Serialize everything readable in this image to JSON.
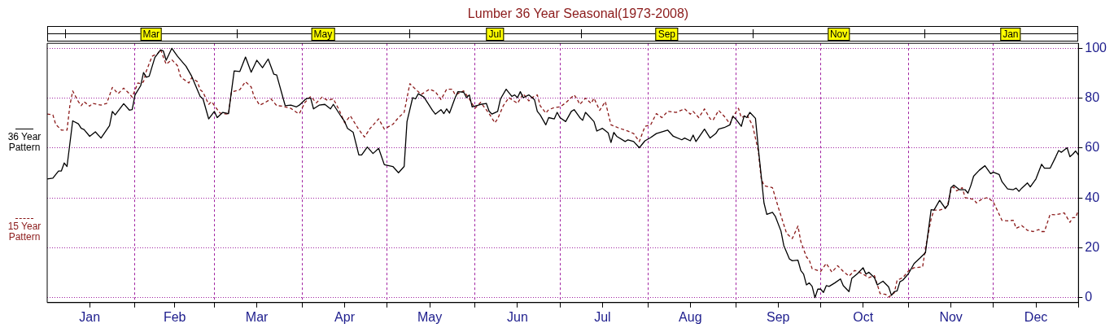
{
  "chart_data": {
    "type": "line",
    "title": "Lumber 36 Year Seasonal(1973-2008)",
    "xlim": [
      "--01-01",
      "--12-31"
    ],
    "xticks": [
      {
        "value": "--01-16",
        "label": "Jan"
      },
      {
        "value": "--02-01",
        "label": null
      },
      {
        "value": "--02-15",
        "label": "Feb"
      },
      {
        "value": "--03-01",
        "label": null
      },
      {
        "value": "--03-16",
        "label": "Mar"
      },
      {
        "value": "--04-01",
        "label": null
      },
      {
        "value": "--04-16",
        "label": "Apr"
      },
      {
        "value": "--05-01",
        "label": null
      },
      {
        "value": "--05-16",
        "label": "May"
      },
      {
        "value": "--06-01",
        "label": null
      },
      {
        "value": "--06-16",
        "label": "Jun"
      },
      {
        "value": "--07-01",
        "label": null
      },
      {
        "value": "--07-16",
        "label": "Jul"
      },
      {
        "value": "--08-01",
        "label": null
      },
      {
        "value": "--08-16",
        "label": "Aug"
      },
      {
        "value": "--09-01",
        "label": null
      },
      {
        "value": "--09-16",
        "label": "Sep"
      },
      {
        "value": "--10-01",
        "label": null
      },
      {
        "value": "--10-16",
        "label": "Oct"
      },
      {
        "value": "--11-01",
        "label": null
      },
      {
        "value": "--11-16",
        "label": "Nov"
      },
      {
        "value": "--12-01",
        "label": null
      },
      {
        "value": "--12-16",
        "label": "Dec"
      },
      {
        "value": "--12-31",
        "label": null
      }
    ],
    "annotations": [
      "Mar",
      "May",
      "Jul",
      "Sep",
      "Nov",
      "Jan"
    ],
    "ylim": [
      -2,
      102
    ],
    "yticks": [
      0,
      20,
      40,
      60,
      80,
      100
    ],
    "grid": true,
    "legend": "left",
    "series": [
      {
        "name": "36 Year Pattern",
        "color": "#000000",
        "line_style": "solid",
        "x": [
          "--01-01",
          "--01-03",
          "--01-05",
          "--01-06",
          "--01-07",
          "--01-08",
          "--01-10",
          "--01-12",
          "--01-13",
          "--01-14",
          "--01-16",
          "--01-18",
          "--01-20",
          "--01-23",
          "--01-24",
          "--01-25",
          "--01-28",
          "--01-30",
          "--01-31",
          "--02-01",
          "--02-03",
          "--02-04",
          "--02-05",
          "--02-06",
          "--02-08",
          "--02-10",
          "--02-11",
          "--02-12",
          "--02-14",
          "--02-16",
          "--02-18",
          "--02-19",
          "--02-21",
          "--02-24",
          "--02-25",
          "--02-27",
          "--03-01",
          "--03-02",
          "--03-04",
          "--03-06",
          "--03-08",
          "--03-10",
          "--03-12",
          "--03-14",
          "--03-16",
          "--03-18",
          "--03-20",
          "--03-22",
          "--03-23",
          "--03-26",
          "--03-28",
          "--03-30",
          "--03-31",
          "--04-02",
          "--04-03",
          "--04-04",
          "--04-05",
          "--04-07",
          "--04-09",
          "--04-11",
          "--04-12",
          "--04-15",
          "--04-16",
          "--04-17",
          "--04-19",
          "--04-21",
          "--04-22",
          "--04-24",
          "--04-26",
          "--04-28",
          "--04-30",
          "--05-03",
          "--05-05",
          "--05-07",
          "--05-08",
          "--05-10",
          "--05-11",
          "--05-12",
          "--05-14",
          "--05-17",
          "--05-18",
          "--05-20",
          "--05-21",
          "--05-22",
          "--05-23",
          "--05-25",
          "--05-26",
          "--05-28",
          "--05-29",
          "--05-30",
          "--05-31",
          "--06-03",
          "--06-05",
          "--06-06",
          "--06-07",
          "--06-09",
          "--06-10",
          "--06-12",
          "--06-14",
          "--06-15",
          "--06-16",
          "--06-17",
          "--06-18",
          "--06-20",
          "--06-22",
          "--06-23",
          "--06-24",
          "--06-26",
          "--06-27",
          "--06-29",
          "--06-30",
          "--07-01",
          "--07-03",
          "--07-05",
          "--07-06",
          "--07-08",
          "--07-09",
          "--07-10",
          "--07-13",
          "--07-14",
          "--07-16",
          "--07-18",
          "--07-19",
          "--07-20",
          "--07-21",
          "--07-24",
          "--07-25",
          "--07-27",
          "--07-29",
          "--07-30",
          "--07-31",
          "--08-02",
          "--08-04",
          "--08-08",
          "--08-10",
          "--08-13",
          "--08-14",
          "--08-16",
          "--08-17",
          "--08-18",
          "--08-21",
          "--08-23",
          "--08-25",
          "--08-26",
          "--08-28",
          "--08-30",
          "--08-31",
          "--09-01",
          "--09-03",
          "--09-04",
          "--09-05",
          "--09-06",
          "--09-08",
          "--09-09",
          "--09-10",
          "--09-11",
          "--09-12",
          "--09-14",
          "--09-15",
          "--09-17",
          "--09-18",
          "--09-20",
          "--09-21",
          "--09-23",
          "--09-24",
          "--09-25",
          "--09-26",
          "--09-27",
          "--09-28",
          "--09-29",
          "--09-30",
          "--10-01",
          "--10-02",
          "--10-03",
          "--10-04",
          "--10-06",
          "--10-08",
          "--10-09",
          "--10-11",
          "--10-12",
          "--10-14",
          "--10-16",
          "--10-17",
          "--10-18",
          "--10-20",
          "--10-21",
          "--10-23",
          "--10-25",
          "--10-26",
          "--10-27",
          "--10-28",
          "--10-29",
          "--10-30",
          "--11-01",
          "--11-03",
          "--11-05",
          "--11-07",
          "--11-09",
          "--11-10",
          "--11-12",
          "--11-14",
          "--11-15",
          "--11-16",
          "--11-17",
          "--11-19",
          "--11-21",
          "--11-22",
          "--11-23",
          "--11-24",
          "--11-26",
          "--11-28",
          "--11-30",
          "--12-01",
          "--12-03",
          "--12-04",
          "--12-06",
          "--12-08",
          "--12-09",
          "--12-10",
          "--12-11",
          "--12-13",
          "--12-14",
          "--12-16",
          "--12-18",
          "--12-19",
          "--12-21",
          "--12-23",
          "--12-24",
          "--12-25",
          "--12-27",
          "--12-28",
          "--12-29",
          "--12-30",
          "--12-31"
        ],
        "values": [
          47.6,
          47.9,
          50.8,
          50.8,
          54,
          52.6,
          70.9,
          69.7,
          67.9,
          67.4,
          64.7,
          66.5,
          64,
          69,
          74.7,
          73.3,
          77.8,
          75.2,
          75.4,
          81.3,
          85,
          90.3,
          88.4,
          88.8,
          96.3,
          99.3,
          98.9,
          95.2,
          100,
          96.8,
          94.1,
          92.8,
          88.8,
          80.7,
          79.7,
          71.7,
          74.7,
          72.2,
          74.3,
          73.8,
          90.9,
          90.7,
          96.5,
          90.4,
          95.2,
          92.2,
          95.7,
          89.6,
          89.3,
          77,
          77.2,
          76.5,
          77.2,
          79.4,
          80,
          80,
          75.7,
          77.2,
          77.5,
          75.7,
          77.5,
          72.2,
          70.6,
          67.9,
          66.3,
          57.2,
          57.2,
          60.4,
          57.8,
          59.9,
          53.3,
          52.6,
          50.1,
          52.6,
          70.6,
          80.2,
          79.7,
          81.8,
          80.4,
          75.1,
          73.6,
          75.4,
          73.8,
          75.7,
          74,
          80.2,
          82.6,
          82.4,
          80.2,
          81.3,
          76.5,
          77.5,
          77.9,
          74.7,
          73.6,
          74.7,
          79.7,
          83.6,
          80.7,
          81.3,
          80.2,
          82.6,
          80.2,
          81.3,
          79.4,
          74.7,
          73.3,
          69.3,
          72.2,
          71.7,
          74.3,
          72.2,
          70.6,
          74.7,
          75.4,
          72.2,
          71.1,
          74.3,
          70.6,
          66.8,
          67.9,
          66.1,
          62.2,
          66.3,
          64.7,
          62.6,
          63.3,
          62.6,
          60.1,
          61.5,
          62.9,
          64.2,
          65.8,
          67.2,
          64.7,
          63.3,
          64,
          62.9,
          65.2,
          62.6,
          67.6,
          64,
          65.8,
          67.6,
          68.2,
          69.3,
          72.7,
          71.7,
          68.7,
          72.9,
          72.2,
          74.3,
          71.9,
          59.9,
          49.2,
          38,
          33.4,
          34.2,
          32.6,
          26.7,
          20.9,
          15.5,
          14.8,
          15,
          10.9,
          9.4,
          5.1,
          5.9,
          4.5,
          0,
          3.4,
          3.4,
          2.1,
          4.8,
          4.5,
          5.9,
          7.5,
          4.8,
          2.4,
          7.7,
          9.6,
          12,
          9.4,
          10.2,
          8,
          5.1,
          6.6,
          4.3,
          0.9,
          2.4,
          2.7,
          6.4,
          7,
          9.6,
          13.7,
          15.8,
          18,
          35.3,
          35.1,
          39,
          35.8,
          37.2,
          44.1,
          45.1,
          43.3,
          43.3,
          41.9,
          44.9,
          48.7,
          51.1,
          52.9,
          49.7,
          50.3,
          49.4,
          46.5,
          43.6,
          43.3,
          43.9,
          42.6,
          43.9,
          46,
          44.4,
          47.6,
          53.5,
          51.9,
          51.9,
          56.5,
          59,
          58.3,
          60.1,
          56.5,
          57.5,
          58.8,
          57.2
        ]
      },
      {
        "name": "15 Year Pattern",
        "color": "#8b1a1a",
        "line_style": "dashed",
        "x": [
          "--01-01",
          "--01-03",
          "--01-04",
          "--01-06",
          "--01-08",
          "--01-09",
          "--01-10",
          "--01-12",
          "--01-13",
          "--01-14",
          "--01-16",
          "--01-17",
          "--01-20",
          "--01-22",
          "--01-24",
          "--01-26",
          "--01-28",
          "--01-30",
          "--01-31",
          "--02-02",
          "--02-03",
          "--02-04",
          "--02-05",
          "--02-07",
          "--02-09",
          "--02-10",
          "--02-11",
          "--02-12",
          "--02-14",
          "--02-16",
          "--02-17",
          "--02-18",
          "--02-20",
          "--02-21",
          "--02-23",
          "--02-24",
          "--02-25",
          "--02-27",
          "--02-28",
          "--03-03",
          "--03-04",
          "--03-06",
          "--03-07",
          "--03-10",
          "--03-12",
          "--03-14",
          "--03-15",
          "--03-17",
          "--03-19",
          "--03-21",
          "--03-23",
          "--03-25",
          "--03-28",
          "--03-30",
          "--03-31",
          "--04-02",
          "--04-04",
          "--04-06",
          "--04-08",
          "--04-10",
          "--04-12",
          "--04-14",
          "--04-16",
          "--04-18",
          "--04-21",
          "--04-23",
          "--04-25",
          "--04-28",
          "--04-30",
          "--05-03",
          "--05-05",
          "--05-07",
          "--05-09",
          "--05-11",
          "--05-13",
          "--05-16",
          "--05-18",
          "--05-20",
          "--05-22",
          "--05-24",
          "--05-25",
          "--05-28",
          "--05-30",
          "--06-01",
          "--06-03",
          "--06-06",
          "--06-08",
          "--06-09",
          "--06-11",
          "--06-13",
          "--06-14",
          "--06-16",
          "--06-18",
          "--06-20",
          "--06-21",
          "--06-23",
          "--06-24",
          "--06-26",
          "--06-27",
          "--06-29",
          "--07-01",
          "--07-03",
          "--07-06",
          "--07-07",
          "--07-08",
          "--07-10",
          "--07-12",
          "--07-13",
          "--07-15",
          "--07-17",
          "--07-19",
          "--07-22",
          "--07-25",
          "--07-27",
          "--07-29",
          "--07-31",
          "--08-02",
          "--08-04",
          "--08-06",
          "--08-08",
          "--08-11",
          "--08-14",
          "--08-16",
          "--08-17",
          "--08-19",
          "--08-21",
          "--08-23",
          "--08-24",
          "--08-26",
          "--08-28",
          "--08-30",
          "--08-31",
          "--09-02",
          "--09-03",
          "--09-05",
          "--09-07",
          "--09-09",
          "--09-10",
          "--09-11",
          "--09-14",
          "--09-16",
          "--09-19",
          "--09-21",
          "--09-23",
          "--09-24",
          "--09-26",
          "--09-27",
          "--09-28",
          "--10-01",
          "--10-03",
          "--10-05",
          "--10-07",
          "--10-09",
          "--10-11",
          "--10-13",
          "--10-14",
          "--10-16",
          "--10-18",
          "--10-20",
          "--10-22",
          "--10-24",
          "--10-25",
          "--10-27",
          "--10-28",
          "--10-30",
          "--11-01",
          "--11-03",
          "--11-06",
          "--11-07",
          "--11-09",
          "--11-10",
          "--11-12",
          "--11-14",
          "--11-15",
          "--11-16",
          "--11-17",
          "--11-18",
          "--11-20",
          "--11-21",
          "--11-24",
          "--11-25",
          "--11-27",
          "--11-29",
          "--12-01",
          "--12-04",
          "--12-06",
          "--12-08",
          "--12-09",
          "--12-11",
          "--12-13",
          "--12-15",
          "--12-17",
          "--12-18",
          "--12-19",
          "--12-21",
          "--12-23",
          "--12-26",
          "--12-28",
          "--12-29",
          "--12-30",
          "--12-31"
        ],
        "values": [
          73.6,
          73.3,
          69.5,
          67.2,
          67.2,
          77,
          82.9,
          78.6,
          77,
          78.6,
          76.8,
          77.9,
          77.2,
          77.9,
          84.3,
          81.8,
          84,
          81.8,
          80.4,
          86.1,
          85.8,
          86.6,
          90.9,
          96.8,
          97.9,
          99.5,
          96.5,
          93.6,
          95.4,
          93,
          88.8,
          87.7,
          86.1,
          88.2,
          86.6,
          83.4,
          82.4,
          77.5,
          78.6,
          74,
          73.8,
          73.6,
          82.4,
          83.4,
          86.6,
          84.5,
          80.7,
          77.2,
          78.3,
          79.7,
          77,
          76.8,
          75.9,
          74.3,
          73.8,
          78.3,
          80.7,
          78.1,
          80.4,
          79.1,
          79.7,
          75.4,
          70.1,
          72.9,
          67.4,
          64.4,
          67.9,
          71.7,
          67.6,
          69.5,
          72.2,
          74.3,
          85.8,
          83.6,
          81.5,
          83.6,
          82.6,
          79.4,
          83.6,
          83.6,
          81.3,
          82.9,
          79.7,
          75.9,
          78.3,
          73.8,
          70.1,
          71.7,
          77,
          80.2,
          79.4,
          77.9,
          81.8,
          78.9,
          80.2,
          81.3,
          77,
          74,
          75.4,
          76.2,
          76.5,
          78.1,
          81.3,
          79.7,
          77.5,
          80,
          77.9,
          80,
          75.1,
          78.6,
          69.3,
          67.9,
          66.8,
          65.8,
          62.6,
          68.7,
          69.3,
          73.8,
          72.2,
          74.7,
          74.3,
          75.7,
          73.6,
          74.7,
          72.2,
          75.7,
          71.7,
          71.1,
          75.1,
          72.7,
          69.7,
          72.5,
          75.9,
          72.2,
          73.3,
          69,
          58.8,
          47.9,
          44.9,
          44.1,
          36.4,
          25.7,
          23.7,
          28.7,
          22.5,
          16.3,
          15,
          11.6,
          10.5,
          13.7,
          10.2,
          12.8,
          10.5,
          8.6,
          10.9,
          10.5,
          9.4,
          8,
          8.8,
          1.6,
          1.3,
          0.2,
          1.9,
          7,
          8,
          10.7,
          12,
          12.3,
          19.8,
          31.6,
          35.1,
          35.1,
          35.8,
          38,
          43.3,
          44.4,
          42.8,
          44.1,
          40.1,
          39.4,
          38,
          39.6,
          40.1,
          38.3,
          31,
          30.8,
          31,
          27.8,
          28.9,
          27,
          26.5,
          27.3,
          26.5,
          26.5,
          33.4,
          33.2,
          34,
          30.2,
          32.1,
          32.1,
          35.1
        ]
      }
    ]
  }
}
